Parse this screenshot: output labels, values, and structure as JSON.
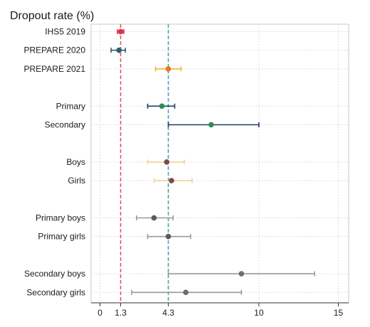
{
  "chart_data": {
    "type": "scatter",
    "subtype": "forest-plot-with-error-bars",
    "title": "Dropout rate (%)",
    "xlabel": "",
    "ylabel": "",
    "xlim": [
      -0.5,
      15.2
    ],
    "xticks": [
      {
        "value": 0,
        "label": "0"
      },
      {
        "value": 1.3,
        "label": "1.3"
      },
      {
        "value": 4.3,
        "label": "4.3"
      },
      {
        "value": 10,
        "label": "10"
      },
      {
        "value": 15,
        "label": "15"
      }
    ],
    "reference_lines": [
      {
        "x": 1.3,
        "color": "#e8506a",
        "style": "dashed"
      },
      {
        "x": 4.3,
        "color": "#4aa3a8",
        "style": "dashed"
      }
    ],
    "grid": "dotted",
    "rows": [
      {
        "label": "IHS5 2019",
        "slot": 0,
        "value": 1.3,
        "low": 1.1,
        "high": 1.5,
        "color": "#d6304c",
        "bar_color": "#d6304c"
      },
      {
        "label": "PREPARE 2020",
        "slot": 1,
        "value": 1.2,
        "low": 0.7,
        "high": 1.6,
        "color": "#2f5d6e",
        "bar_color": "#2f5d6e"
      },
      {
        "label": "PREPARE 2021",
        "slot": 2,
        "value": 4.3,
        "low": 3.5,
        "high": 5.1,
        "color": "#e3781f",
        "bar_color": "#f0b63a"
      },
      {
        "label": "Primary",
        "slot": 4,
        "value": 3.9,
        "low": 3.0,
        "high": 4.7,
        "color": "#2e8a5a",
        "bar_color": "#1f3a66"
      },
      {
        "label": "Secondary",
        "slot": 5,
        "value": 7.0,
        "low": 4.3,
        "high": 10.0,
        "color": "#2e8a5a",
        "bar_color": "#1f3a66"
      },
      {
        "label": "Boys",
        "slot": 7,
        "value": 4.2,
        "low": 3.0,
        "high": 5.3,
        "color": "#7a4a56",
        "bar_color": "#ecd49a"
      },
      {
        "label": "Girls",
        "slot": 8,
        "value": 4.5,
        "low": 3.4,
        "high": 5.8,
        "color": "#7a4a56",
        "bar_color": "#ecd49a"
      },
      {
        "label": "Primary boys",
        "slot": 10,
        "value": 3.4,
        "low": 2.3,
        "high": 4.6,
        "color": "#5a5a5a",
        "bar_color": "#9a9a90"
      },
      {
        "label": "Primary girls",
        "slot": 11,
        "value": 4.3,
        "low": 3.0,
        "high": 5.7,
        "color": "#5a5a5a",
        "bar_color": "#9a9a90"
      },
      {
        "label": "Secondary boys",
        "slot": 13,
        "value": 8.9,
        "low": 4.3,
        "high": 13.5,
        "color": "#6e6e66",
        "bar_color": "#9a9a90"
      },
      {
        "label": "Secondary girls",
        "slot": 14,
        "value": 5.4,
        "low": 2.0,
        "high": 8.9,
        "color": "#6e6e66",
        "bar_color": "#9a9a90"
      }
    ]
  }
}
